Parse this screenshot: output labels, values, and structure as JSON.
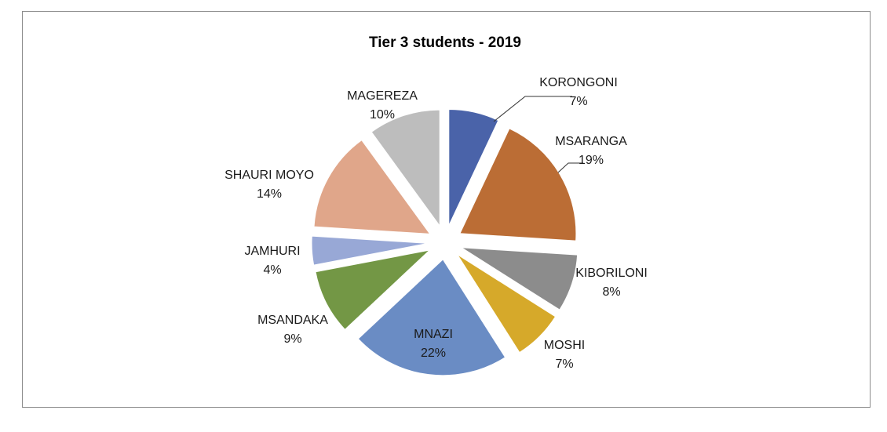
{
  "chart_data": {
    "type": "pie",
    "title": "Tier 3 students - 2019",
    "exploded": true,
    "slices": [
      {
        "name": "KORONGONI",
        "value": 7,
        "label": "7%",
        "color": "#4a63a9"
      },
      {
        "name": "MSARANGA",
        "value": 19,
        "label": "19%",
        "color": "#bb6d35"
      },
      {
        "name": "KIBORILONI",
        "value": 8,
        "label": "8%",
        "color": "#8c8c8c"
      },
      {
        "name": "MOSHI",
        "value": 7,
        "label": "7%",
        "color": "#d6a92a"
      },
      {
        "name": "MNAZI",
        "value": 22,
        "label": "22%",
        "color": "#6a8cc4"
      },
      {
        "name": "MSANDAKA",
        "value": 9,
        "label": "9%",
        "color": "#739745"
      },
      {
        "name": "JAMHURI",
        "value": 4,
        "label": "4%",
        "color": "#98a8d6"
      },
      {
        "name": "SHAURI MOYO",
        "value": 14,
        "label": "14%",
        "color": "#e0a68a"
      },
      {
        "name": "MAGEREZA",
        "value": 10,
        "label": "10%",
        "color": "#bdbdbd"
      }
    ]
  }
}
